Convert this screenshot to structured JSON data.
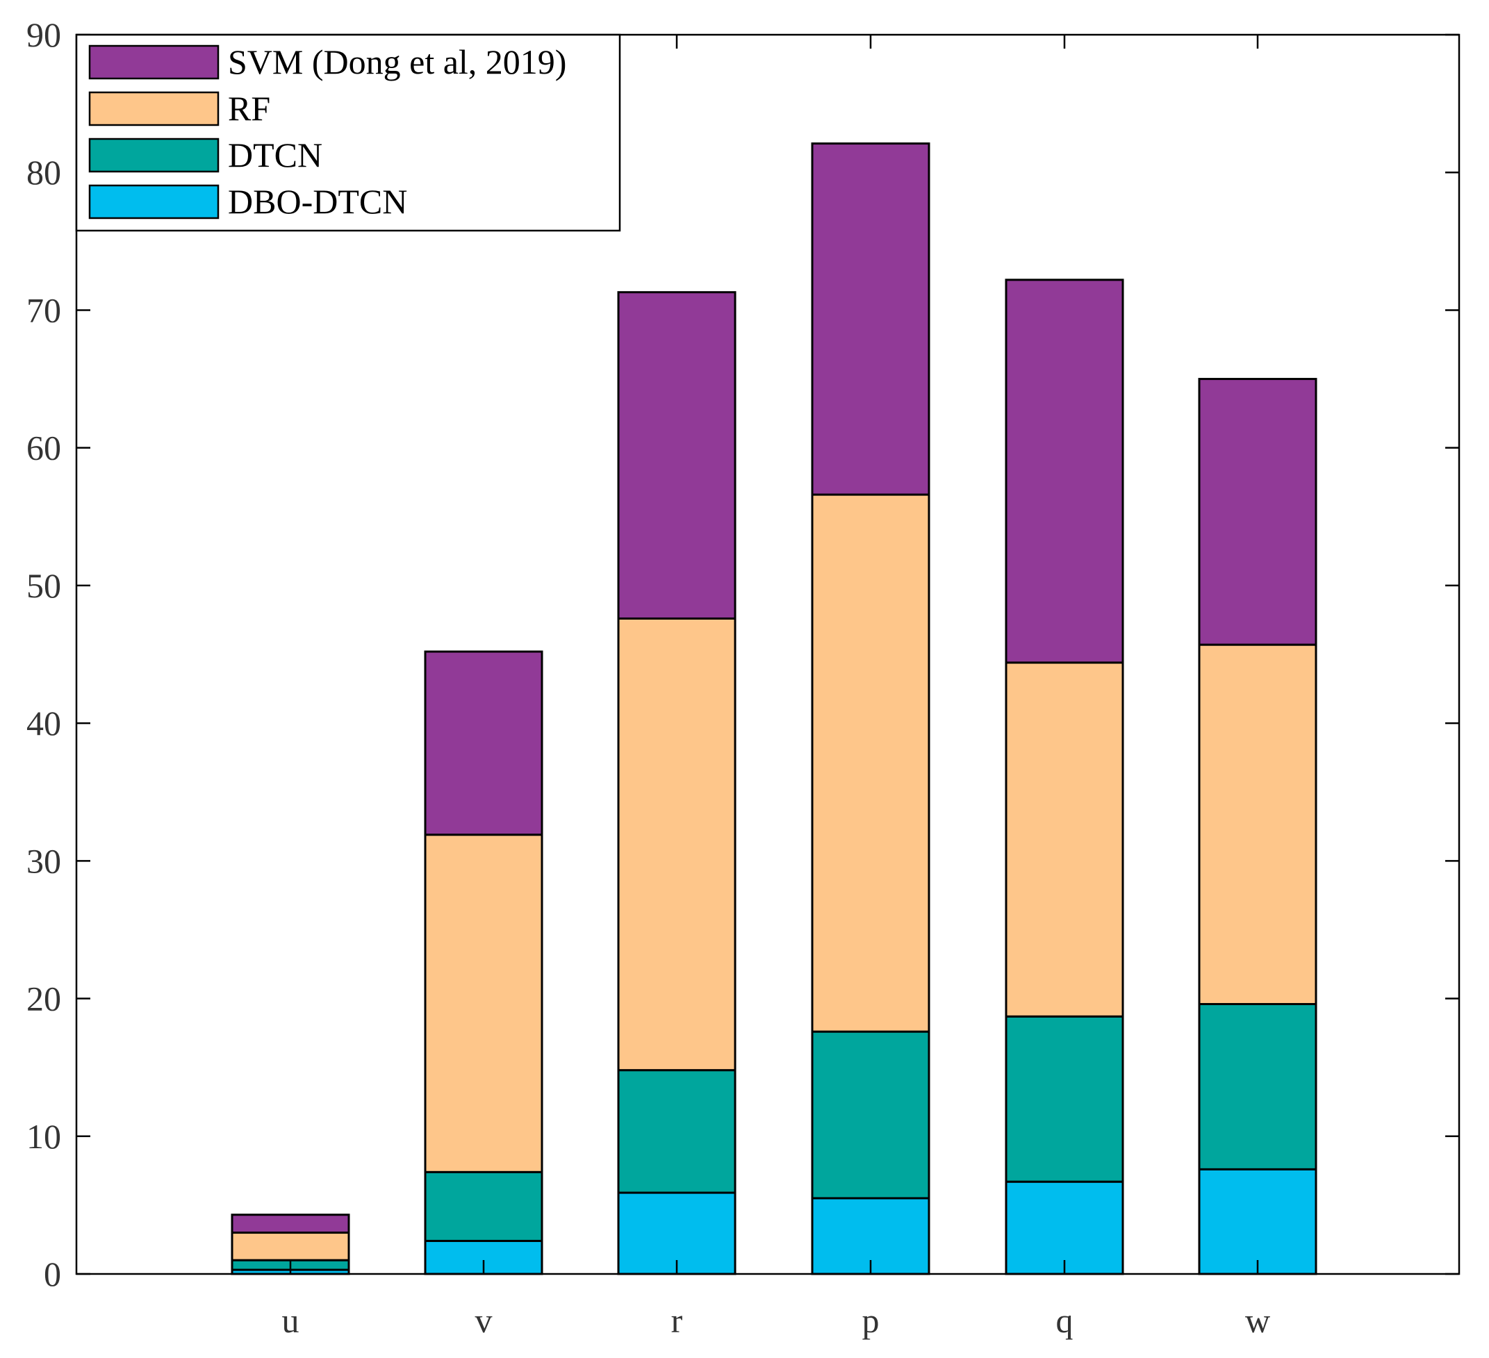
{
  "chart_data": {
    "type": "bar",
    "stacked": true,
    "categories": [
      "u",
      "v",
      "r",
      "p",
      "q",
      "w"
    ],
    "ylim": [
      0,
      90
    ],
    "yticks": [
      0,
      10,
      20,
      30,
      40,
      50,
      60,
      70,
      80,
      90
    ],
    "ytick_labels": [
      "0",
      "10",
      "20",
      "30",
      "40",
      "50",
      "60",
      "70",
      "80",
      "90"
    ],
    "title": "",
    "xlabel": "",
    "ylabel": "",
    "grid": false,
    "legend_position": "top-left",
    "series": [
      {
        "name": "DBO-DTCN",
        "color": "#00BDEE",
        "values": [
          0.3,
          2.4,
          5.9,
          5.5,
          6.7,
          7.6
        ]
      },
      {
        "name": "DTCN",
        "color": "#00A69D",
        "values": [
          0.7,
          5.0,
          8.9,
          12.1,
          12.0,
          12.0
        ]
      },
      {
        "name": "RF",
        "color": "#FEC68A",
        "values": [
          2.0,
          24.5,
          32.8,
          39.0,
          25.7,
          26.1
        ]
      },
      {
        "name": "SVM (Dong et al, 2019)",
        "color": "#913A97",
        "values": [
          1.3,
          13.3,
          23.7,
          25.5,
          27.8,
          19.3
        ]
      }
    ],
    "legend_order": [
      "SVM (Dong et al, 2019)",
      "RF",
      "DTCN",
      "DBO-DTCN"
    ]
  }
}
